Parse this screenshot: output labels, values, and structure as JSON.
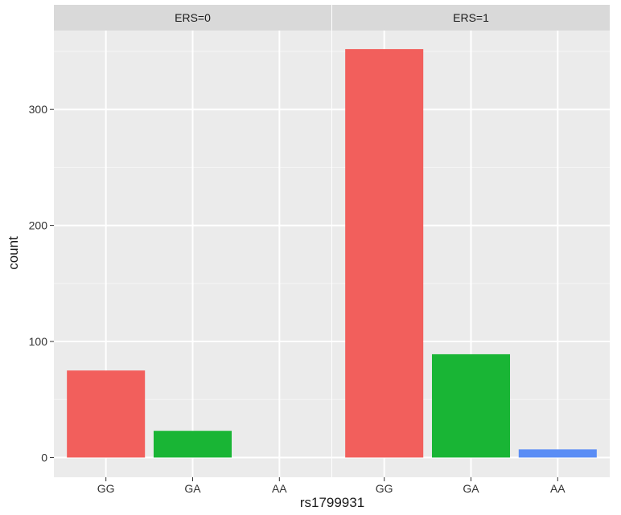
{
  "chart_data": {
    "type": "bar",
    "xlabel": "rs1799931",
    "ylabel": "count",
    "categories": [
      "GG",
      "GA",
      "AA"
    ],
    "yticks": [
      0,
      100,
      200,
      300
    ],
    "ylim": [
      -17,
      368
    ],
    "grid": true,
    "legend": "none",
    "colors": [
      "#F25F5C",
      "#19B535",
      "#5A8DF5"
    ],
    "panels": [
      {
        "strip": "ERS=0",
        "values": [
          75,
          23,
          0
        ]
      },
      {
        "strip": "ERS=1",
        "values": [
          352,
          89,
          7
        ]
      }
    ]
  }
}
